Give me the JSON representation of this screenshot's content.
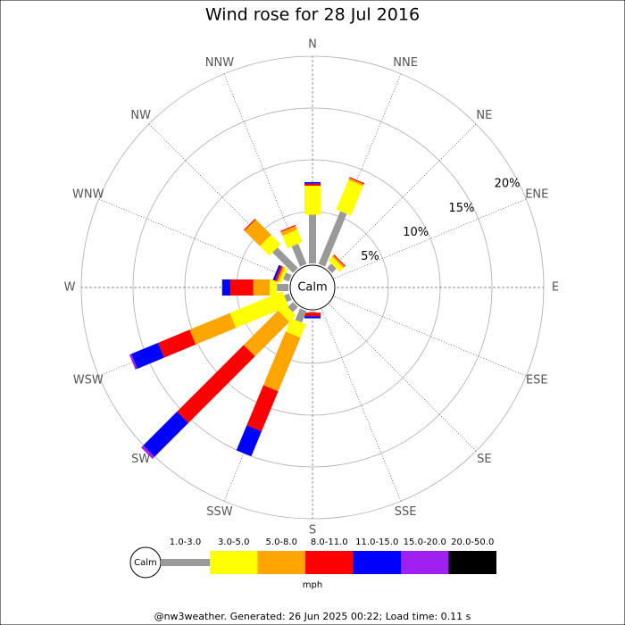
{
  "chart_data": {
    "type": "wind_rose",
    "title": "Wind rose for 28 Jul 2016",
    "directions": [
      "N",
      "NNE",
      "NE",
      "ENE",
      "E",
      "ESE",
      "SE",
      "SSE",
      "S",
      "SSW",
      "SW",
      "WSW",
      "W",
      "WNW",
      "NW",
      "NNW"
    ],
    "calm_label": "Calm",
    "ylim": [
      0,
      20
    ],
    "yticks": [
      {
        "value": 5,
        "label": "5%"
      },
      {
        "value": 10,
        "label": "10%"
      },
      {
        "value": 15,
        "label": "15%"
      },
      {
        "value": 20,
        "label": "20%"
      }
    ],
    "series": [
      {
        "name": "1.0-3.0",
        "color": "#999999",
        "values": [
          4.7,
          5.5,
          0.6,
          0,
          0,
          0,
          0,
          0,
          0.1,
          1.2,
          0.7,
          0.5,
          1.1,
          0.6,
          2.8,
          2.1
        ]
      },
      {
        "name": "3.0-5.0",
        "color": "#ffff00",
        "values": [
          2.8,
          3.1,
          0.5,
          0,
          0,
          0,
          0,
          0,
          0,
          1.4,
          0.9,
          5.5,
          0.7,
          0.3,
          1.3,
          1.3
        ]
      },
      {
        "name": "5.0-8.0",
        "color": "#ffa500",
        "values": [
          0,
          0.2,
          0.2,
          0,
          0,
          0,
          0,
          0,
          0,
          5.6,
          4.7,
          4.2,
          1.6,
          0.2,
          2.1,
          0.4
        ]
      },
      {
        "name": "8.0-11.0",
        "color": "#ff0000",
        "values": [
          0.2,
          0.1,
          0.1,
          0,
          0,
          0,
          0,
          0,
          0.35,
          4.2,
          9.1,
          3.3,
          2.2,
          0.2,
          0.1,
          0.1
        ]
      },
      {
        "name": "11.0-15.0",
        "color": "#0000ff",
        "values": [
          0.15,
          0,
          0,
          0,
          0,
          0,
          0,
          0,
          0.2,
          2.6,
          4.6,
          2.8,
          0.8,
          0.2,
          0,
          0
        ]
      },
      {
        "name": "15.0-20.0",
        "color": "#a020f0",
        "values": [
          0,
          0,
          0,
          0,
          0,
          0,
          0,
          0,
          0,
          0,
          0.3,
          0.2,
          0,
          0,
          0,
          0
        ]
      },
      {
        "name": "20.0-50.0",
        "color": "#000000",
        "values": [
          0,
          0,
          0,
          0,
          0,
          0,
          0,
          0,
          0,
          0,
          0,
          0,
          0,
          0,
          0,
          0
        ]
      }
    ],
    "unit_label": "mph",
    "footer": "@nw3weather. Generated: 26 Jun 2025 00:22; Load time: 0.11 s"
  }
}
